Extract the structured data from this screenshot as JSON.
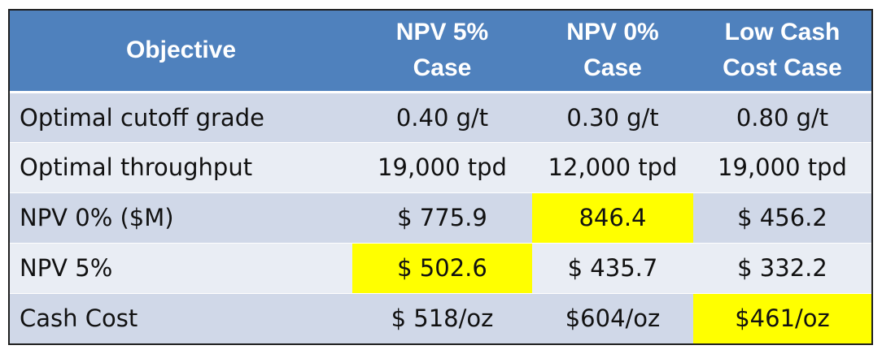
{
  "table": {
    "headers": [
      "Objective",
      "NPV 5% Case",
      "NPV 0% Case",
      "Low Cash Cost Case"
    ],
    "header_lines": [
      [
        "Objective"
      ],
      [
        "NPV 5%",
        "Case"
      ],
      [
        "NPV 0%",
        "Case"
      ],
      [
        "Low Cash",
        "Cost Case"
      ]
    ],
    "rows": [
      [
        "Optimal cutoff grade",
        "0.40 g/t",
        "0.30 g/t",
        "0.80 g/t"
      ],
      [
        "Optimal throughput",
        "19,000 tpd",
        "12,000 tpd",
        "19,000 tpd"
      ],
      [
        "NPV 0% ($M)",
        "$ 775.9",
        "846.4",
        "$ 456.2"
      ],
      [
        "NPV 5%",
        "$ 502.6",
        "$ 435.7",
        "$ 332.2"
      ],
      [
        "Cash Cost",
        "$ 518/oz",
        "$604/oz",
        "$461/oz"
      ]
    ],
    "highlighted_cells": [
      [
        2,
        2
      ],
      [
        3,
        1
      ],
      [
        4,
        3
      ]
    ],
    "colors": {
      "header_bg": "#4f81bd",
      "row_odd": "#d0d8e8",
      "row_even": "#e9edf4",
      "highlight": "#ffff00"
    }
  }
}
